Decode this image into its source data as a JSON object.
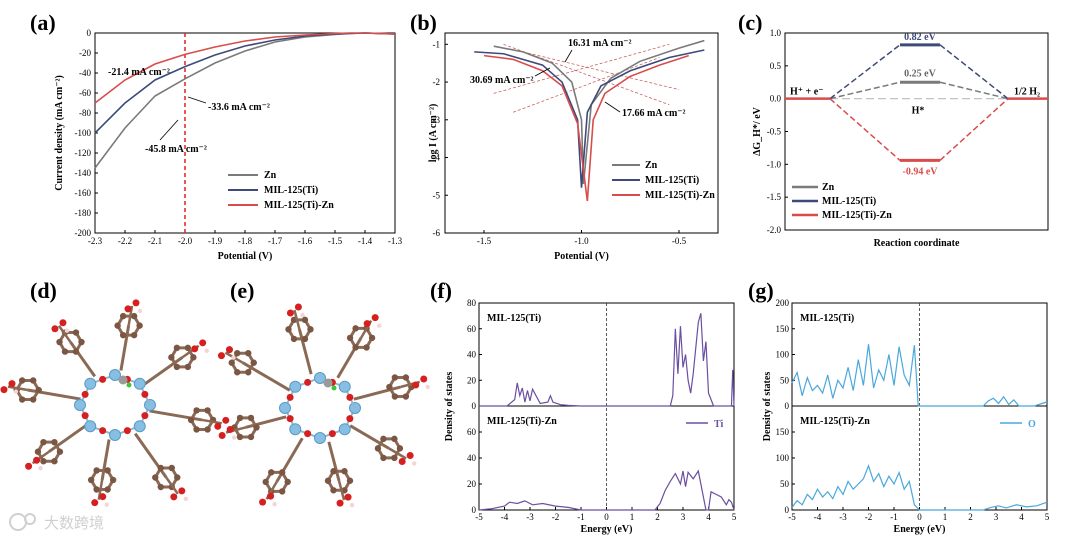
{
  "panels": {
    "a": "(a)",
    "b": "(b)",
    "c": "(c)",
    "d": "(d)",
    "e": "(e)",
    "f": "(f)",
    "g": "(g)"
  },
  "watermark": "大数跨境",
  "colors": {
    "zn": "#7a7a7a",
    "ti": "#3d4a7a",
    "tizn": "#d94c4c",
    "ti_pdos": "#6b4fa0",
    "o_pdos": "#4aa8dc",
    "marker": "#e02020"
  },
  "chart_data": [
    {
      "id": "a",
      "type": "line",
      "xlabel": "Potential (V)",
      "ylabel": "Current density (mA cm⁻²)",
      "xlim": [
        -2.3,
        -1.3
      ],
      "ylim": [
        -200,
        0
      ],
      "xticks": [
        "-2.3",
        "-2.2",
        "-2.1",
        "-2.0",
        "-1.9",
        "-1.8",
        "-1.7",
        "-1.6",
        "-1.5",
        "-1.4",
        "-1.3"
      ],
      "yticks": [
        "0",
        "-20",
        "-40",
        "-60",
        "-80",
        "-100",
        "-120",
        "-140",
        "-160",
        "-180",
        "-200"
      ],
      "marker_x": -2.0,
      "series": [
        {
          "name": "Zn",
          "x": [
            -2.3,
            -2.2,
            -2.1,
            -2.0,
            -1.9,
            -1.8,
            -1.7,
            -1.6,
            -1.5,
            -1.45,
            -1.4,
            -1.3
          ],
          "y": [
            -135,
            -95,
            -63,
            -45.8,
            -30,
            -18,
            -9,
            -4,
            -1.5,
            -0.5,
            0,
            -1
          ]
        },
        {
          "name": "MIL-125(Ti)",
          "x": [
            -2.3,
            -2.2,
            -2.1,
            -2.0,
            -1.9,
            -1.8,
            -1.7,
            -1.6,
            -1.5,
            -1.45,
            -1.4,
            -1.3
          ],
          "y": [
            -100,
            -70,
            -47,
            -33.6,
            -22,
            -13,
            -7,
            -3,
            -1,
            -0.5,
            0,
            -1
          ]
        },
        {
          "name": "MIL-125(Ti)-Zn",
          "x": [
            -2.3,
            -2.2,
            -2.1,
            -2.0,
            -1.9,
            -1.8,
            -1.7,
            -1.6,
            -1.5,
            -1.45,
            -1.4,
            -1.3
          ],
          "y": [
            -70,
            -47,
            -31,
            -21.4,
            -14,
            -8,
            -4,
            -2,
            -0.5,
            0,
            0,
            -1
          ]
        }
      ],
      "annotations": [
        "-21.4 mA cm⁻²",
        "-33.6 mA cm⁻²",
        "-45.8 mA cm⁻²"
      ]
    },
    {
      "id": "b",
      "type": "line",
      "xlabel": "Potential (V)",
      "ylabel": "log I (A cm⁻²)",
      "xlim": [
        -1.7,
        -0.3
      ],
      "ylim": [
        -6,
        -0.7
      ],
      "xticks": [
        "-1.5",
        "-1.0",
        "-0.5"
      ],
      "xtick_vals": [
        -1.5,
        -1.0,
        -0.5
      ],
      "yticks": [
        "-1",
        "-2",
        "-3",
        "-4",
        "-5",
        "-6"
      ],
      "ytick_vals": [
        -1,
        -2,
        -3,
        -4,
        -5,
        -6
      ],
      "series": [
        {
          "name": "Zn",
          "x": [
            -1.45,
            -1.3,
            -1.15,
            -1.05,
            -1.0,
            -0.99,
            -0.95,
            -0.85,
            -0.7,
            -0.5,
            -0.37
          ],
          "y": [
            -1.05,
            -1.2,
            -1.5,
            -2.0,
            -3.0,
            -4.7,
            -2.6,
            -1.9,
            -1.45,
            -1.1,
            -0.9
          ]
        },
        {
          "name": "MIL-125(Ti)",
          "x": [
            -1.55,
            -1.4,
            -1.2,
            -1.1,
            -1.02,
            -1.0,
            -0.97,
            -0.9,
            -0.75,
            -0.55,
            -0.37
          ],
          "y": [
            -1.2,
            -1.25,
            -1.55,
            -2.0,
            -3.0,
            -4.8,
            -2.8,
            -2.1,
            -1.7,
            -1.35,
            -1.15
          ]
        },
        {
          "name": "MIL-125(Ti)-Zn",
          "x": [
            -1.5,
            -1.35,
            -1.2,
            -1.1,
            -1.02,
            -0.97,
            -0.94,
            -0.88,
            -0.75,
            -0.6,
            -0.45
          ],
          "y": [
            -1.3,
            -1.4,
            -1.7,
            -2.1,
            -3.1,
            -5.15,
            -3.0,
            -2.3,
            -1.85,
            -1.55,
            -1.3
          ]
        }
      ],
      "annotations": [
        "16.31 mA cm⁻²",
        "30.69 mA cm⁻²",
        "17.66 mA cm⁻²"
      ]
    },
    {
      "id": "c",
      "type": "line",
      "xlabel": "Reaction coordinate",
      "ylabel": "ΔG_H*/ eV",
      "ylim": [
        -2.0,
        1.0
      ],
      "yticks": [
        "1.0",
        "0.5",
        "0.0",
        "-0.5",
        "-1.0",
        "-1.5",
        "-2.0"
      ],
      "series": [
        {
          "name": "Zn",
          "value": 0.25
        },
        {
          "name": "MIL-125(Ti)",
          "value": 0.82
        },
        {
          "name": "MIL-125(Ti)-Zn",
          "value": -0.94
        }
      ],
      "value_labels": [
        "0.82 eV",
        "0.25 eV",
        "-0.94 eV"
      ],
      "state_labels": {
        "start": "H⁺ + e⁻",
        "mid": "H*",
        "end": "1/2 H₂"
      }
    },
    {
      "id": "f",
      "type": "line",
      "xlabel": "Energy (eV)",
      "ylabel": "Density of states",
      "xlim": [
        -5,
        5
      ],
      "xticks": [
        "-5",
        "-4",
        "-3",
        "-2",
        "-1",
        "0",
        "1",
        "2",
        "3",
        "4",
        "5"
      ],
      "upper": {
        "label": "MIL-125(Ti)",
        "ylim": [
          0,
          80
        ],
        "yticks": [
          "80",
          "60",
          "40",
          "20",
          "0"
        ]
      },
      "lower": {
        "label": "MIL-125(Ti)-Zn",
        "ylim": [
          0,
          80
        ],
        "yticks": [
          "80",
          "60",
          "40",
          "20",
          "0"
        ]
      },
      "legend": "Ti",
      "series": [
        {
          "name": "MIL-125(Ti)",
          "x": [
            -5,
            -3.9,
            -3.6,
            -3.5,
            -3.4,
            -3.3,
            -3.2,
            -3.1,
            -3.0,
            -2.9,
            -2.6,
            -2.3,
            -2.2,
            -2.1,
            -1.8,
            -1.5,
            -1,
            0,
            2.5,
            2.6,
            2.7,
            2.8,
            2.9,
            3.0,
            3.1,
            3.2,
            3.3,
            3.4,
            3.5,
            3.6,
            3.7,
            3.8,
            3.9,
            4.0,
            4.2,
            4.9,
            4.95,
            5
          ],
          "y": [
            0,
            0,
            5,
            18,
            8,
            14,
            3,
            12,
            4,
            13,
            2,
            3,
            8,
            3,
            1,
            0.5,
            0,
            0,
            0,
            8,
            60,
            25,
            62,
            30,
            40,
            20,
            10,
            25,
            45,
            65,
            72,
            35,
            50,
            10,
            0,
            0,
            28,
            0
          ]
        },
        {
          "name": "MIL-125(Ti)-Zn",
          "x": [
            -5,
            -4.5,
            -4.0,
            -3.8,
            -3.5,
            -3.2,
            -2.9,
            -2.5,
            -2.0,
            -1.5,
            -1,
            0,
            1.9,
            2.1,
            2.3,
            2.5,
            2.7,
            2.9,
            3.0,
            3.1,
            3.2,
            3.4,
            3.6,
            3.8,
            3.9,
            4.0,
            4.1,
            4.3,
            4.5,
            4.7,
            4.8,
            4.9,
            5
          ],
          "y": [
            0,
            1,
            3,
            6,
            5,
            7,
            4,
            5,
            3,
            2,
            0,
            0,
            0,
            5,
            15,
            22,
            28,
            20,
            30,
            18,
            29,
            24,
            30,
            10,
            0,
            0,
            14,
            12,
            10,
            4,
            8,
            6,
            0
          ]
        }
      ]
    },
    {
      "id": "g",
      "type": "line",
      "xlabel": "Energy (eV)",
      "ylabel": "Density of states",
      "xlim": [
        -5,
        5
      ],
      "xticks": [
        "-5",
        "-4",
        "-3",
        "-2",
        "-1",
        "0",
        "1",
        "2",
        "3",
        "4",
        "5"
      ],
      "upper": {
        "label": "MIL-125(Ti)",
        "ylim": [
          0,
          200
        ],
        "yticks": [
          "200",
          "150",
          "100",
          "50",
          "0"
        ]
      },
      "lower": {
        "label": "MIL-125(Ti)-Zn",
        "ylim": [
          0,
          200
        ],
        "yticks": [
          "200",
          "150",
          "100",
          "50",
          "0"
        ]
      },
      "legend": "O",
      "series": [
        {
          "name": "MIL-125(Ti)",
          "x": [
            -5,
            -4.8,
            -4.6,
            -4.4,
            -4.2,
            -4.0,
            -3.8,
            -3.6,
            -3.4,
            -3.2,
            -3.0,
            -2.8,
            -2.6,
            -2.4,
            -2.2,
            -2.0,
            -1.8,
            -1.6,
            -1.4,
            -1.2,
            -1.0,
            -0.8,
            -0.6,
            -0.4,
            -0.2,
            -0.05,
            0,
            2.5,
            2.7,
            2.9,
            3.1,
            3.3,
            3.5,
            3.7,
            3.9,
            4.5,
            5
          ],
          "y": [
            45,
            65,
            20,
            55,
            30,
            40,
            25,
            60,
            15,
            50,
            35,
            75,
            30,
            90,
            40,
            120,
            35,
            70,
            50,
            100,
            40,
            115,
            60,
            40,
            118,
            0,
            0,
            0,
            10,
            15,
            5,
            18,
            3,
            12,
            0,
            0,
            8
          ]
        },
        {
          "name": "MIL-125(Ti)-Zn",
          "x": [
            -5,
            -4.8,
            -4.6,
            -4.4,
            -4.2,
            -4.0,
            -3.8,
            -3.6,
            -3.4,
            -3.2,
            -3.0,
            -2.8,
            -2.6,
            -2.4,
            -2.2,
            -2.0,
            -1.8,
            -1.6,
            -1.4,
            -1.2,
            -1.0,
            -0.8,
            -0.6,
            -0.4,
            -0.2,
            0,
            2.5,
            2.8,
            3.1,
            3.4,
            3.8,
            4.2,
            4.6,
            5
          ],
          "y": [
            5,
            18,
            10,
            30,
            20,
            40,
            25,
            35,
            22,
            45,
            30,
            55,
            40,
            50,
            60,
            85,
            55,
            70,
            45,
            65,
            50,
            72,
            40,
            55,
            10,
            0,
            0,
            5,
            8,
            4,
            10,
            6,
            8,
            15
          ]
        }
      ]
    }
  ]
}
